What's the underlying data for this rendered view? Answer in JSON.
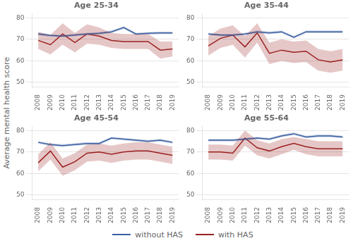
{
  "chart_data": [
    {
      "type": "line",
      "title": "Age 25-34",
      "ylabel": "Average mental health score",
      "legend": "bottom",
      "x": [
        2008,
        2009,
        2010,
        2011,
        2012,
        2013,
        2014,
        2015,
        2016,
        2017,
        2018,
        2019
      ],
      "xlim": [
        2007.5,
        2019.5
      ],
      "xticks": [
        2008,
        2009,
        2010,
        2011,
        2012,
        2013,
        2014,
        2015,
        2016,
        2017,
        2018,
        2019
      ],
      "ylim": [
        48,
        82
      ],
      "yticks": [
        50,
        60,
        70,
        80
      ],
      "grid": "y",
      "series": [
        {
          "name": "without HAS",
          "color": "#3A5FA0",
          "values": [
            72.5,
            71.8,
            71.5,
            72.0,
            72.5,
            72.8,
            73.5,
            75.5,
            72.5,
            72.8,
            73.0,
            73.0
          ],
          "lo": [
            71.8,
            71.2,
            70.9,
            71.4,
            71.9,
            72.2,
            72.9,
            74.9,
            71.9,
            72.2,
            72.4,
            72.4
          ],
          "hi": [
            73.2,
            72.4,
            72.1,
            72.6,
            73.1,
            73.4,
            74.1,
            76.1,
            73.1,
            73.4,
            73.6,
            73.6
          ]
        },
        {
          "name": "with HAS",
          "color": "#9B2020",
          "values": [
            69.5,
            67.5,
            72.5,
            68.5,
            72.5,
            71.5,
            69.5,
            69.0,
            69.0,
            69.0,
            65.0,
            65.5
          ],
          "lo": [
            65.5,
            63.0,
            67.5,
            64.0,
            68.0,
            67.5,
            66.0,
            65.5,
            65.5,
            65.5,
            61.0,
            62.0
          ],
          "hi": [
            73.5,
            72.0,
            77.5,
            73.0,
            77.0,
            75.5,
            73.0,
            72.5,
            72.5,
            72.5,
            69.0,
            69.0
          ]
        }
      ]
    },
    {
      "type": "line",
      "title": "Age 35-44",
      "x": [
        2008,
        2009,
        2010,
        2011,
        2012,
        2013,
        2014,
        2015,
        2016,
        2017,
        2018,
        2019
      ],
      "xlim": [
        2007.5,
        2019.5
      ],
      "xticks": [
        2008,
        2009,
        2010,
        2011,
        2012,
        2013,
        2014,
        2015,
        2016,
        2017,
        2018,
        2019
      ],
      "ylim": [
        48,
        82
      ],
      "yticks": [
        50,
        60,
        70,
        80
      ],
      "grid": "y",
      "series": [
        {
          "name": "without HAS",
          "color": "#3A5FA0",
          "values": [
            72.5,
            72.0,
            72.0,
            72.5,
            73.5,
            73.0,
            73.5,
            71.0,
            73.5,
            73.5,
            73.5,
            73.5
          ],
          "lo": [
            71.9,
            71.4,
            71.4,
            71.9,
            72.9,
            72.4,
            72.9,
            70.4,
            72.9,
            72.9,
            72.9,
            72.9
          ],
          "hi": [
            73.1,
            72.6,
            72.6,
            73.1,
            74.1,
            73.6,
            74.1,
            71.6,
            74.1,
            74.1,
            74.1,
            74.1
          ]
        },
        {
          "name": "with HAS",
          "color": "#9B2020",
          "values": [
            67.0,
            70.5,
            72.0,
            66.5,
            73.0,
            63.5,
            65.0,
            64.0,
            64.5,
            60.5,
            59.5,
            60.5
          ],
          "lo": [
            62.5,
            66.0,
            67.5,
            61.5,
            68.5,
            58.5,
            60.0,
            59.0,
            59.5,
            55.5,
            54.5,
            55.5
          ],
          "hi": [
            71.5,
            75.0,
            76.5,
            71.5,
            77.5,
            68.5,
            70.0,
            69.0,
            69.5,
            65.5,
            64.5,
            65.5
          ]
        }
      ]
    },
    {
      "type": "line",
      "title": "Age 45-54",
      "x": [
        2008,
        2009,
        2010,
        2011,
        2012,
        2013,
        2014,
        2015,
        2016,
        2017,
        2018,
        2019
      ],
      "xlim": [
        2007.5,
        2019.5
      ],
      "xticks": [
        2008,
        2009,
        2010,
        2011,
        2012,
        2013,
        2014,
        2015,
        2016,
        2017,
        2018,
        2019
      ],
      "ylim": [
        48,
        82
      ],
      "yticks": [
        50,
        60,
        70,
        80
      ],
      "grid": "y",
      "series": [
        {
          "name": "without HAS",
          "color": "#3A5FA0",
          "values": [
            74.5,
            73.5,
            73.0,
            73.5,
            74.0,
            74.0,
            76.5,
            76.0,
            75.5,
            75.0,
            75.5,
            74.5
          ],
          "lo": [
            73.9,
            72.9,
            72.4,
            72.9,
            73.4,
            73.4,
            75.9,
            75.4,
            74.9,
            74.4,
            74.9,
            73.9
          ],
          "hi": [
            75.1,
            74.1,
            73.6,
            74.1,
            74.6,
            74.6,
            77.1,
            76.6,
            76.1,
            75.6,
            76.1,
            75.1
          ]
        },
        {
          "name": "with HAS",
          "color": "#9B2020",
          "values": [
            65.0,
            70.5,
            63.0,
            65.5,
            69.5,
            70.0,
            69.0,
            70.0,
            70.5,
            70.5,
            69.5,
            68.5
          ],
          "lo": [
            61.0,
            66.5,
            59.0,
            61.5,
            65.5,
            66.0,
            65.0,
            66.0,
            66.5,
            66.5,
            65.5,
            64.5
          ],
          "hi": [
            69.0,
            74.5,
            67.0,
            69.5,
            73.5,
            74.0,
            73.0,
            74.0,
            74.5,
            74.5,
            73.5,
            72.5
          ]
        }
      ]
    },
    {
      "type": "line",
      "title": "Age 55-64",
      "x": [
        2008,
        2009,
        2010,
        2011,
        2012,
        2013,
        2014,
        2015,
        2016,
        2017,
        2018,
        2019
      ],
      "xlim": [
        2007.5,
        2019.5
      ],
      "xticks": [
        2008,
        2009,
        2010,
        2011,
        2012,
        2013,
        2014,
        2015,
        2016,
        2017,
        2018,
        2019
      ],
      "ylim": [
        48,
        82
      ],
      "yticks": [
        50,
        60,
        70,
        80
      ],
      "grid": "y",
      "series": [
        {
          "name": "without HAS",
          "color": "#3A5FA0",
          "values": [
            75.5,
            75.5,
            75.5,
            76.0,
            76.5,
            76.0,
            77.5,
            78.5,
            77.0,
            77.5,
            77.5,
            77.0
          ],
          "lo": [
            74.9,
            74.9,
            74.9,
            75.4,
            75.9,
            75.4,
            76.9,
            77.9,
            76.4,
            76.9,
            76.9,
            76.4
          ],
          "hi": [
            76.1,
            76.1,
            76.1,
            76.6,
            77.1,
            76.6,
            78.1,
            79.1,
            77.6,
            78.1,
            78.1,
            77.6
          ]
        },
        {
          "name": "with HAS",
          "color": "#9B2020",
          "values": [
            70.0,
            70.0,
            69.5,
            76.5,
            72.0,
            70.5,
            72.5,
            74.0,
            72.5,
            71.5,
            71.5,
            71.5
          ],
          "lo": [
            66.5,
            66.5,
            66.0,
            73.0,
            68.5,
            67.0,
            69.0,
            71.0,
            69.0,
            68.0,
            68.0,
            68.0
          ],
          "hi": [
            73.5,
            73.5,
            73.0,
            80.0,
            75.5,
            74.0,
            76.0,
            77.0,
            76.0,
            75.0,
            75.0,
            75.0
          ]
        }
      ]
    }
  ]
}
